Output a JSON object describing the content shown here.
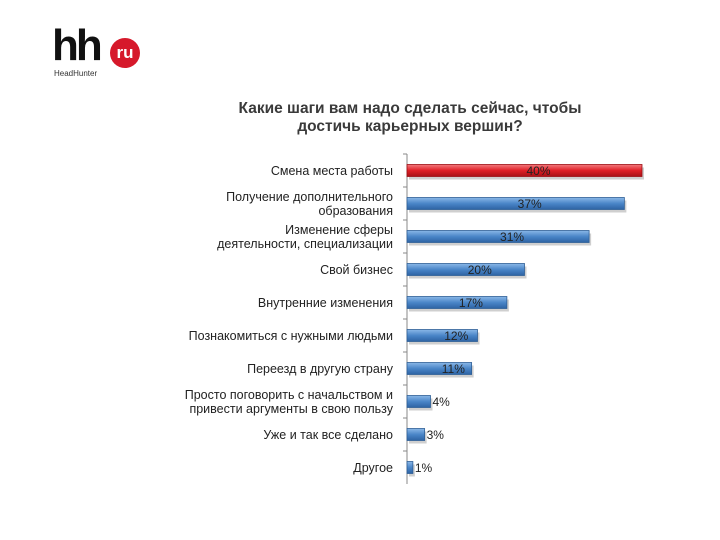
{
  "logo": {
    "brand": "hh",
    "badge": "ru",
    "subtitle": "HeadHunter"
  },
  "chart_data": {
    "type": "bar",
    "orientation": "horizontal",
    "title_lines": [
      "Какие шаги вам надо сделать сейчас, чтобы",
      "достичь карьерных вершин?"
    ],
    "categories": [
      [
        "Смена места работы"
      ],
      [
        "Получение дополнительного",
        "образования"
      ],
      [
        "Изменение сферы",
        "деятельности, специализации"
      ],
      [
        "Свой бизнес"
      ],
      [
        "Внутренние изменения"
      ],
      [
        "Познакомиться с нужными людьми"
      ],
      [
        "Переезд в другую страну"
      ],
      [
        "Просто поговорить с начальством и",
        "привести аргументы в свою пользу"
      ],
      [
        "Уже и так все сделано"
      ],
      [
        "Другое"
      ]
    ],
    "values": [
      40,
      37,
      31,
      20,
      17,
      12,
      11,
      4,
      3,
      1
    ],
    "data_labels": [
      "40%",
      "37%",
      "31%",
      "20%",
      "17%",
      "12%",
      "11%",
      "4%",
      "3%",
      "1%"
    ],
    "unit": "%",
    "xlim": [
      0,
      40
    ],
    "highlight_index": 0,
    "colors": {
      "highlight": "#e01f26",
      "bar": "#4a86c8",
      "bar_edge": "#2f5f96",
      "axis": "#888888",
      "label": "#222222"
    }
  }
}
